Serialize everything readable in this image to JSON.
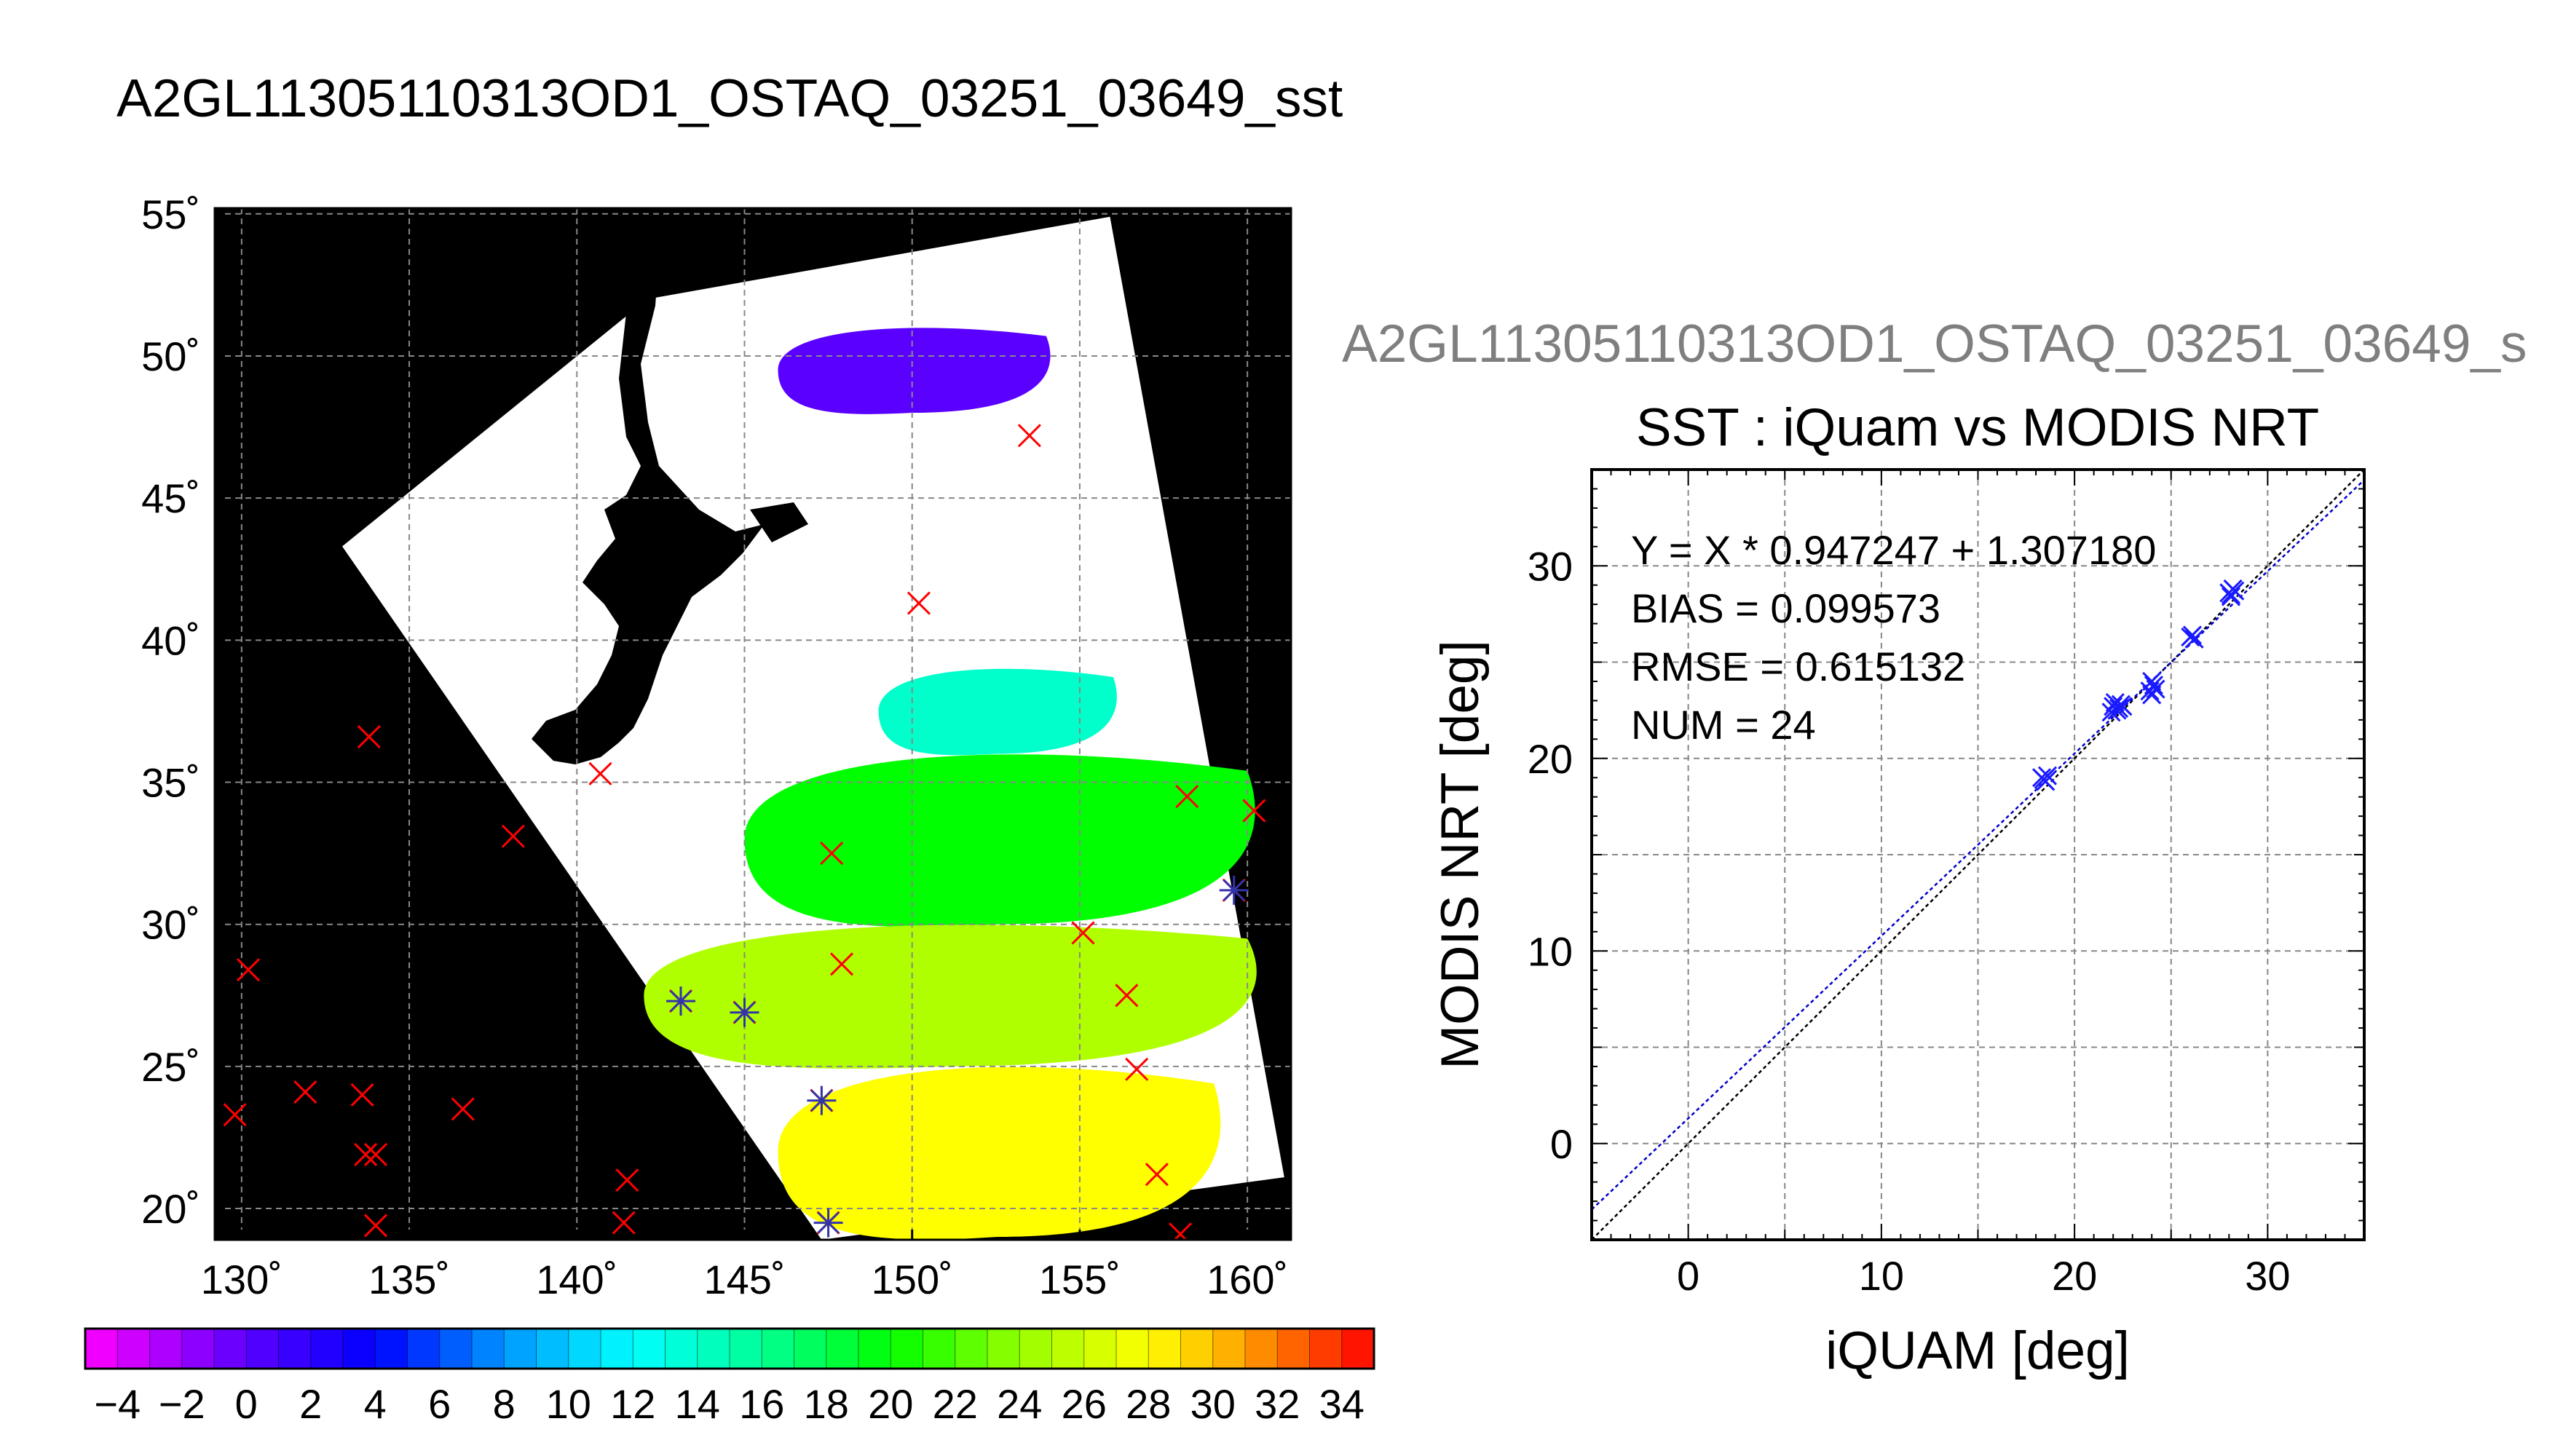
{
  "figure": {
    "map_title": "A2GL11305110313OD1_OSTAQ_03251_03649_sst",
    "scatter_heading": "A2GL11305110313OD1_OSTAQ_03251_03649_s"
  },
  "colors": {
    "land": "#000000",
    "swath": "#ffffff",
    "grid": "#888888",
    "in_situ_marker": "#ff0000",
    "matched_marker": "#3333aa",
    "scatter_points": "#1a1aff",
    "fit_line": "#0000cc",
    "identity_line": "#000000"
  },
  "chart_data": [
    {
      "type": "heatmap",
      "title": "A2GL11305110313OD1_OSTAQ_03251_03649_sst",
      "xlabel": "",
      "ylabel": "",
      "x_ticks": [
        "130˚",
        "135˚",
        "140˚",
        "145˚",
        "150˚",
        "155˚",
        "160˚"
      ],
      "y_ticks": [
        "55˚",
        "50˚",
        "45˚",
        "40˚",
        "35˚",
        "30˚",
        "25˚",
        "20˚"
      ],
      "lon_range": [
        129.2,
        161.3
      ],
      "lat_range": [
        18.9,
        55.2
      ],
      "grid": true,
      "swath_corners": [
        {
          "lon": 142.1,
          "lat": 52.0
        },
        {
          "lon": 155.9,
          "lat": 54.9
        },
        {
          "lon": 161.1,
          "lat": 21.1
        },
        {
          "lon": 147.3,
          "lat": 18.9
        },
        {
          "lon": 133.0,
          "lat": 43.3
        }
      ],
      "sst_regions": [
        {
          "name": "purple cold patch",
          "sst": 0,
          "lat": [
            48,
            51
          ],
          "lon": [
            146,
            154
          ]
        },
        {
          "name": "cyan band",
          "sst": 14,
          "lat": [
            36,
            39
          ],
          "lon": [
            149,
            156
          ]
        },
        {
          "name": "green band",
          "sst": 20,
          "lat": [
            30,
            36
          ],
          "lon": [
            145,
            160
          ]
        },
        {
          "name": "yellow-green band",
          "sst": 25,
          "lat": [
            25,
            30
          ],
          "lon": [
            142,
            160
          ]
        },
        {
          "name": "yellow band",
          "sst": 28,
          "lat": [
            19,
            25
          ],
          "lon": [
            146,
            159
          ]
        }
      ],
      "in_situ_points": [
        {
          "lon": 153.5,
          "lat": 47.2
        },
        {
          "lon": 150.2,
          "lat": 41.3
        },
        {
          "lon": 133.8,
          "lat": 36.6
        },
        {
          "lon": 140.7,
          "lat": 35.3
        },
        {
          "lon": 147.6,
          "lat": 32.5
        },
        {
          "lon": 138.1,
          "lat": 33.1
        },
        {
          "lon": 158.2,
          "lat": 34.5
        },
        {
          "lon": 160.2,
          "lat": 34.0
        },
        {
          "lon": 159.6,
          "lat": 31.2
        },
        {
          "lon": 155.1,
          "lat": 29.7
        },
        {
          "lon": 147.9,
          "lat": 28.6
        },
        {
          "lon": 143.1,
          "lat": 27.3
        },
        {
          "lon": 145.0,
          "lat": 26.9
        },
        {
          "lon": 156.4,
          "lat": 27.5
        },
        {
          "lon": 156.7,
          "lat": 24.9
        },
        {
          "lon": 147.3,
          "lat": 23.8
        },
        {
          "lon": 130.2,
          "lat": 28.4
        },
        {
          "lon": 129.8,
          "lat": 23.3
        },
        {
          "lon": 131.9,
          "lat": 24.1
        },
        {
          "lon": 133.6,
          "lat": 24.0
        },
        {
          "lon": 133.7,
          "lat": 21.9
        },
        {
          "lon": 134.0,
          "lat": 21.9
        },
        {
          "lon": 136.6,
          "lat": 23.5
        },
        {
          "lon": 141.5,
          "lat": 21.0
        },
        {
          "lon": 141.4,
          "lat": 19.5
        },
        {
          "lon": 134.0,
          "lat": 19.4
        },
        {
          "lon": 157.3,
          "lat": 21.2
        },
        {
          "lon": 158.0,
          "lat": 19.1
        },
        {
          "lon": 147.5,
          "lat": 19.5
        }
      ],
      "matched_points": [
        {
          "lon": 159.6,
          "lat": 31.2
        },
        {
          "lon": 143.1,
          "lat": 27.3
        },
        {
          "lon": 145.0,
          "lat": 26.9
        },
        {
          "lon": 147.3,
          "lat": 23.8
        },
        {
          "lon": 147.5,
          "lat": 19.5
        }
      ],
      "colorbar": {
        "min": -5,
        "max": 35,
        "step": 2,
        "tick_labels": [
          "−4",
          "−2",
          "0",
          "2",
          "4",
          "6",
          "8",
          "10",
          "12",
          "14",
          "16",
          "18",
          "20",
          "22",
          "24",
          "26",
          "28",
          "30",
          "32",
          "34"
        ]
      }
    },
    {
      "type": "scatter",
      "title": "SST : iQuam vs MODIS NRT",
      "xlabel": "iQUAM [deg]",
      "ylabel": "MODIS NRT [deg]",
      "xlim": [
        -5,
        35
      ],
      "ylim": [
        -5,
        35
      ],
      "x_ticks": [
        "0",
        "10",
        "20",
        "30"
      ],
      "y_ticks": [
        "0",
        "10",
        "20",
        "30"
      ],
      "grid": true,
      "annotations": [
        "Y = X * 0.947247 + 1.307180",
        "BIAS = 0.099573",
        "RMSE = 0.615132",
        "NUM = 24"
      ],
      "fit": {
        "slope": 0.947247,
        "intercept": 1.30718
      },
      "points": [
        {
          "x": 18.3,
          "y": 19.0
        },
        {
          "x": 18.5,
          "y": 18.8
        },
        {
          "x": 18.4,
          "y": 18.9
        },
        {
          "x": 22.0,
          "y": 22.7
        },
        {
          "x": 22.2,
          "y": 22.5
        },
        {
          "x": 22.4,
          "y": 22.8
        },
        {
          "x": 22.3,
          "y": 22.6
        },
        {
          "x": 21.9,
          "y": 22.4
        },
        {
          "x": 22.1,
          "y": 22.9
        },
        {
          "x": 24.0,
          "y": 23.3
        },
        {
          "x": 24.1,
          "y": 23.8
        },
        {
          "x": 24.0,
          "y": 24.0
        },
        {
          "x": 23.9,
          "y": 23.5
        },
        {
          "x": 26.0,
          "y": 26.3
        },
        {
          "x": 26.1,
          "y": 26.4
        },
        {
          "x": 28.1,
          "y": 28.5
        },
        {
          "x": 28.2,
          "y": 28.8
        },
        {
          "x": 28.0,
          "y": 28.6
        },
        {
          "x": 28.3,
          "y": 28.7
        },
        {
          "x": 18.6,
          "y": 19.1
        },
        {
          "x": 22.5,
          "y": 22.7
        },
        {
          "x": 24.2,
          "y": 23.6
        },
        {
          "x": 26.2,
          "y": 26.2
        },
        {
          "x": 28.1,
          "y": 28.4
        }
      ]
    }
  ]
}
